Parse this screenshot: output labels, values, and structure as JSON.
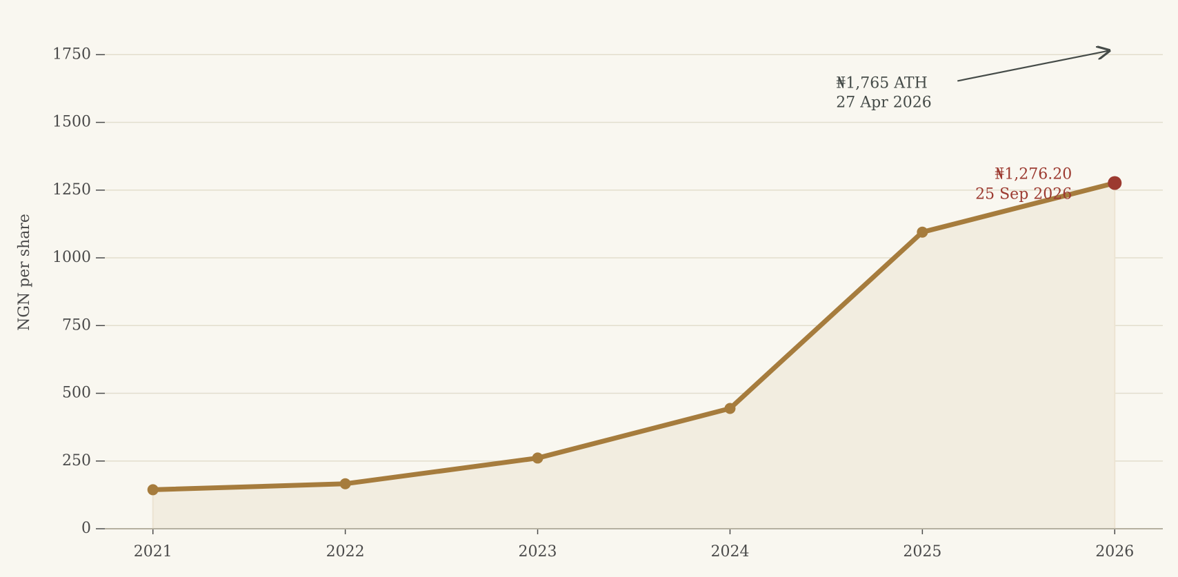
{
  "chart_data": {
    "type": "line",
    "y_label": "NGN per share",
    "x": [
      2021,
      2022,
      2023,
      2024,
      2025,
      2026
    ],
    "series": [
      {
        "name": "NGN per share",
        "color": "#a67c3d",
        "values": [
          144,
          166,
          261,
          444,
          1095,
          1276.2
        ],
        "value_labels": [
          null,
          null,
          null,
          null,
          null,
          "₦1,276.20"
        ]
      }
    ],
    "highlight_last": {
      "color": "#9c3a30",
      "date": "25 Sep 2026"
    },
    "annotations": [
      {
        "text": "₦1,765 ATH",
        "subtext": "27 Apr 2026",
        "x": 2026,
        "y": 1765,
        "color": "#454b48"
      }
    ],
    "xlim": [
      2020.75,
      2026.25
    ],
    "xticks": [
      2021,
      2022,
      2023,
      2024,
      2025,
      2026
    ],
    "ylim": [
      0,
      1850
    ],
    "yticks": [
      0,
      250,
      500,
      750,
      1000,
      1250,
      1500,
      1750
    ],
    "grid": true,
    "fill_area": true
  }
}
